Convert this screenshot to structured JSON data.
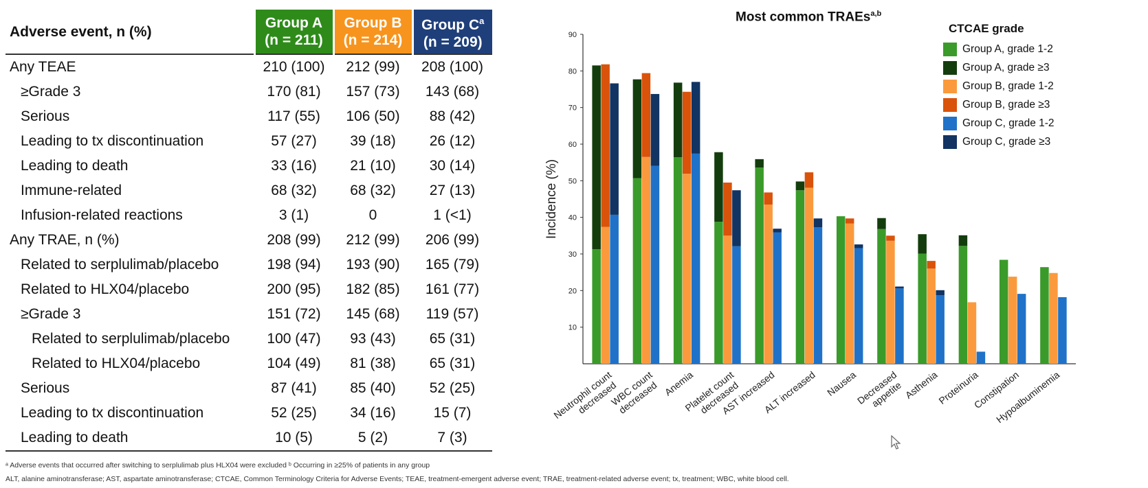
{
  "table": {
    "header": {
      "rowhead": "Adverse event, n (%)",
      "groups": [
        {
          "name": "Group A",
          "n": "(n = 211)",
          "color": "#2e8b1a",
          "sup": ""
        },
        {
          "name": "Group B",
          "n": "(n = 214)",
          "color": "#f7941d",
          "sup": ""
        },
        {
          "name": "Group C",
          "n": "(n = 209)",
          "color": "#1f3f7a",
          "sup": "a"
        }
      ]
    },
    "rows": [
      {
        "label": "Any TEAE",
        "indent": 0,
        "a": "210 (100)",
        "b": "212 (99)",
        "c": "208 (100)"
      },
      {
        "label": "≥Grade 3",
        "indent": 1,
        "a": "170 (81)",
        "b": "157 (73)",
        "c": "143 (68)"
      },
      {
        "label": "Serious",
        "indent": 1,
        "a": "117 (55)",
        "b": "106 (50)",
        "c": "88 (42)"
      },
      {
        "label": "Leading to tx discontinuation",
        "indent": 1,
        "a": "57 (27)",
        "b": "39 (18)",
        "c": "26 (12)"
      },
      {
        "label": "Leading to death",
        "indent": 1,
        "a": "33 (16)",
        "b": "21 (10)",
        "c": "30 (14)"
      },
      {
        "label": "Immune-related",
        "indent": 1,
        "a": "68 (32)",
        "b": "68 (32)",
        "c": "27 (13)"
      },
      {
        "label": "Infusion-related reactions",
        "indent": 1,
        "a": "3 (1)",
        "b": "0",
        "c": "1 (<1)"
      },
      {
        "label": "Any TRAE, n (%)",
        "indent": 0,
        "a": "208 (99)",
        "b": "212 (99)",
        "c": "206 (99)"
      },
      {
        "label": "Related to serplulimab/placebo",
        "indent": 1,
        "a": "198 (94)",
        "b": "193 (90)",
        "c": "165 (79)"
      },
      {
        "label": "Related to HLX04/placebo",
        "indent": 1,
        "a": "200 (95)",
        "b": "182 (85)",
        "c": "161 (77)"
      },
      {
        "label": "≥Grade 3",
        "indent": 1,
        "a": "151 (72)",
        "b": "145 (68)",
        "c": "119 (57)"
      },
      {
        "label": "Related to serplulimab/placebo",
        "indent": 2,
        "a": "100 (47)",
        "b": "93 (43)",
        "c": "65 (31)"
      },
      {
        "label": "Related to HLX04/placebo",
        "indent": 2,
        "a": "104 (49)",
        "b": "81 (38)",
        "c": "65 (31)"
      },
      {
        "label": "Serious",
        "indent": 1,
        "a": "87 (41)",
        "b": "85 (40)",
        "c": "52 (25)"
      },
      {
        "label": "Leading to tx discontinuation",
        "indent": 1,
        "a": "52 (25)",
        "b": "34 (16)",
        "c": "15 (7)"
      },
      {
        "label": "Leading to death",
        "indent": 1,
        "a": "10 (5)",
        "b": "5 (2)",
        "c": "7 (3)"
      }
    ]
  },
  "footnotes": {
    "line1": "ᵃ Adverse events that occurred after switching to serplulimab plus HLX04 were excluded  ᵇ Occurring in ≥25% of patients in any group",
    "line2": "ALT, alanine aminotransferase; AST, aspartate aminotransferase; CTCAE, Common Terminology Criteria for Adverse Events; TEAE, treatment-emergent adverse event; TRAE, treatment-related adverse event; tx, treatment; WBC, white blood cell."
  },
  "chart_data": {
    "type": "bar",
    "stacked": true,
    "title": "Most common TRAEs",
    "title_sup": "a,b",
    "xlabel": "",
    "ylabel": "Incidence (%)",
    "ylim": [
      0,
      90
    ],
    "yticks": [
      10,
      20,
      30,
      40,
      50,
      60,
      70,
      80,
      90
    ],
    "grid": false,
    "legend_title": "CTCAE grade",
    "legend_position": "top-right",
    "categories": [
      "Neutrophil count decreased",
      "WBC count decreased",
      "Anemia",
      "Platelet count decreased",
      "AST increased",
      "ALT increased",
      "Nausea",
      "Decreased appetite",
      "Asthenia",
      "Proteinuria",
      "Constipation",
      "Hypoalbuminemia"
    ],
    "category_lines": [
      [
        "Neutrophil count",
        "decreased"
      ],
      [
        "WBC count",
        "decreased"
      ],
      [
        "Anemia"
      ],
      [
        "Platelet count",
        "decreased"
      ],
      [
        "AST increased"
      ],
      [
        "ALT increased"
      ],
      [
        "Nausea"
      ],
      [
        "Decreased",
        "appetite"
      ],
      [
        "Asthenia"
      ],
      [
        "Proteinuria"
      ],
      [
        "Constipation"
      ],
      [
        "Hypoalbuminemia"
      ]
    ],
    "groups": [
      {
        "name": "Group A",
        "series": [
          {
            "name": "Group A, grade 1-2",
            "color": "#3a9b2a",
            "values": [
              31.3,
              50.7,
              56.4,
              38.8,
              53.6,
              47.4,
              40.3,
              36.8,
              30.1,
              32.2,
              28.4,
              26.4
            ]
          },
          {
            "name": "Group A, grade ≥3",
            "color": "#143d0d",
            "values": [
              50.2,
              27.0,
              20.4,
              19.0,
              2.3,
              2.4,
              0.0,
              3.0,
              5.3,
              2.9,
              0.0,
              0.0
            ]
          }
        ]
      },
      {
        "name": "Group B",
        "series": [
          {
            "name": "Group B, grade 1-2",
            "color": "#fb9a3d",
            "values": [
              37.4,
              56.5,
              51.9,
              35.0,
              43.5,
              48.1,
              38.3,
              33.6,
              26.0,
              16.8,
              23.8,
              24.8
            ]
          },
          {
            "name": "Group B, grade ≥3",
            "color": "#d9530b",
            "values": [
              44.4,
              22.9,
              22.4,
              14.5,
              3.3,
              4.2,
              1.4,
              1.4,
              2.1,
              0.0,
              0.0,
              0.0
            ]
          }
        ]
      },
      {
        "name": "Group C",
        "series": [
          {
            "name": "Group C, grade 1-2",
            "color": "#1f72c8",
            "values": [
              40.7,
              54.1,
              57.4,
              32.1,
              35.9,
              37.3,
              31.6,
              20.6,
              18.7,
              3.3,
              19.1,
              18.2
            ]
          },
          {
            "name": "Group C, grade ≥3",
            "color": "#113463",
            "values": [
              35.9,
              19.6,
              19.6,
              15.3,
              1.0,
              2.4,
              1.0,
              0.5,
              1.4,
              0.0,
              0.0,
              0.0
            ]
          }
        ]
      }
    ]
  }
}
